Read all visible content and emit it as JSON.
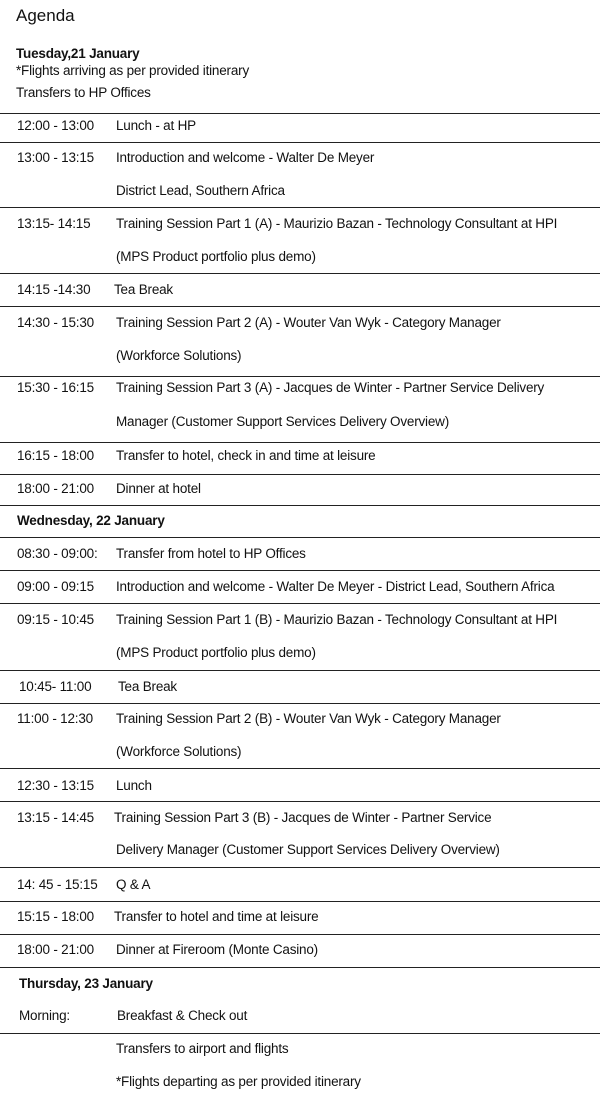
{
  "title": "Agenda",
  "day1": {
    "heading": "Tuesday,21 January",
    "note1": "*Flights arriving as per provided itinerary",
    "note2": "Transfers to HP Offices",
    "rows": [
      {
        "time": "12:00 - 13:00",
        "lines": [
          "Lunch - at HP"
        ]
      },
      {
        "time": "13:00 - 13:15",
        "lines": [
          "Introduction and welcome - Walter De Meyer",
          "District Lead, Southern Africa"
        ]
      },
      {
        "time": "13:15- 14:15",
        "lines": [
          "Training Session Part 1 (A) - Maurizio Bazan - Technology Consultant at HPI",
          "(MPS Product portfolio plus demo)"
        ]
      },
      {
        "time": "14:15 -14:30",
        "lines": [
          "Tea Break"
        ]
      },
      {
        "time": "14:30 - 15:30",
        "lines": [
          "Training Session Part 2 (A) - Wouter Van Wyk - Category Manager",
          "(Workforce Solutions)"
        ]
      },
      {
        "time": "15:30 - 16:15",
        "lines": [
          "Training Session Part 3 (A) - Jacques de Winter - Partner Service Delivery",
          "Manager (Customer Support Services Delivery Overview)"
        ]
      },
      {
        "time": "16:15 - 18:00",
        "lines": [
          "Transfer to hotel, check in and time at leisure"
        ]
      },
      {
        "time": "18:00 - 21:00",
        "lines": [
          "Dinner at hotel"
        ]
      }
    ]
  },
  "day2": {
    "heading": "Wednesday, 22 January",
    "rows": [
      {
        "time": "08:30 - 09:00:",
        "lines": [
          "Transfer from hotel to HP Offices"
        ]
      },
      {
        "time": "09:00 - 09:15",
        "lines": [
          "Introduction and welcome - Walter De Meyer - District Lead, Southern Africa"
        ]
      },
      {
        "time": "09:15 - 10:45",
        "lines": [
          "Training Session Part 1 (B) - Maurizio Bazan - Technology Consultant at HPI",
          "(MPS Product portfolio plus demo)"
        ]
      },
      {
        "time": "10:45- 11:00",
        "lines": [
          "Tea Break"
        ]
      },
      {
        "time": "11:00 - 12:30",
        "lines": [
          "Training Session Part 2 (B) - Wouter Van Wyk - Category Manager",
          "(Workforce Solutions)"
        ]
      },
      {
        "time": "12:30 - 13:15",
        "lines": [
          "Lunch"
        ]
      },
      {
        "time": "13:15 - 14:45",
        "lines": [
          "Training Session Part 3 (B) - Jacques de Winter - Partner Service",
          "Delivery Manager (Customer Support Services Delivery Overview)"
        ]
      },
      {
        "time": "14: 45 - 15:15",
        "lines": [
          "Q & A"
        ]
      },
      {
        "time": "15:15 - 18:00",
        "lines": [
          "Transfer to hotel and time at leisure"
        ]
      },
      {
        "time": "18:00 - 21:00",
        "lines": [
          "Dinner at Fireroom (Monte Casino)"
        ]
      }
    ]
  },
  "day3": {
    "heading": "Thursday, 23 January",
    "rows": [
      {
        "time": "Morning:",
        "lines": [
          "Breakfast & Check out"
        ]
      },
      {
        "time": "",
        "lines": [
          "Transfers to airport and flights",
          "*Flights departing as per provided itinerary"
        ]
      }
    ]
  }
}
